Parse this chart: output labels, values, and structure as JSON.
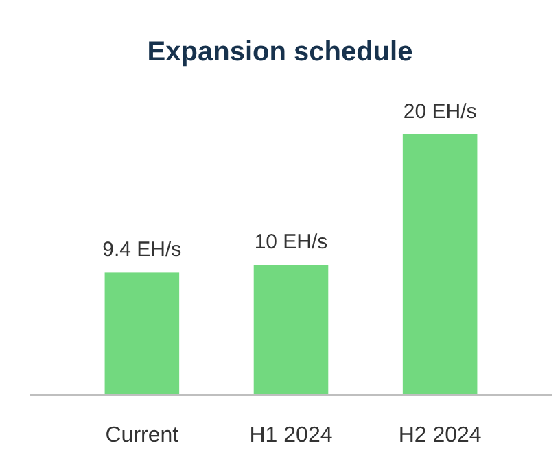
{
  "chart_data": {
    "type": "bar",
    "title": "Expansion schedule",
    "categories": [
      "Current",
      "H1 2024",
      "H2 2024"
    ],
    "values": [
      9.4,
      10,
      20
    ],
    "value_labels": [
      "9.4 EH/s",
      "10 EH/s",
      "20 EH/s"
    ],
    "color": "#72d97f"
  }
}
